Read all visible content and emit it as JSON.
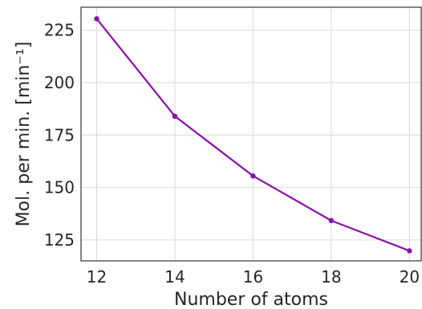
{
  "chart_data": {
    "type": "line",
    "x": [
      12,
      14,
      16,
      18,
      20
    ],
    "series": [
      {
        "values": [
          230.5,
          184,
          155.5,
          134.2,
          119.8
        ],
        "color": "#8b0ea8"
      }
    ],
    "xlabel": "Number of atoms",
    "ylabel": "Mol. per min. [min⁻¹]",
    "xticks": [
      12,
      14,
      16,
      18,
      20
    ],
    "yticks": [
      125,
      150,
      175,
      200,
      225
    ],
    "xlim": [
      11.6,
      20.3
    ],
    "ylim": [
      115,
      236
    ],
    "grid": true,
    "legend": "none"
  }
}
